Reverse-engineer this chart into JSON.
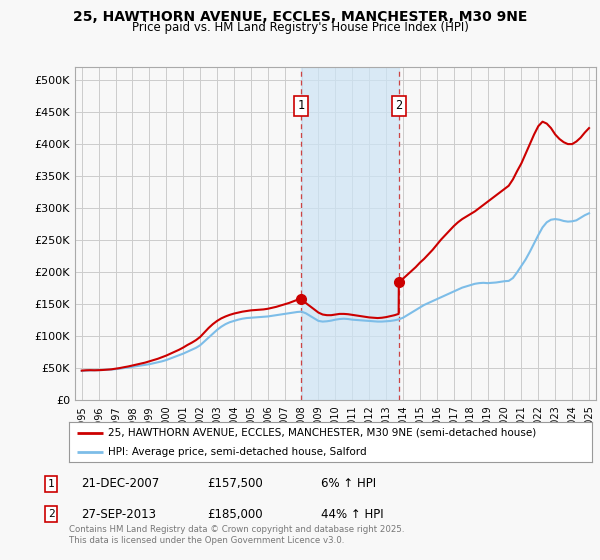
{
  "title_line1": "25, HAWTHORN AVENUE, ECCLES, MANCHESTER, M30 9NE",
  "title_line2": "Price paid vs. HM Land Registry's House Price Index (HPI)",
  "ylabel_ticks": [
    "£0",
    "£50K",
    "£100K",
    "£150K",
    "£200K",
    "£250K",
    "£300K",
    "£350K",
    "£400K",
    "£450K",
    "£500K"
  ],
  "ytick_values": [
    0,
    50000,
    100000,
    150000,
    200000,
    250000,
    300000,
    350000,
    400000,
    450000,
    500000
  ],
  "ylim": [
    0,
    520000
  ],
  "xlim_start": 1994.6,
  "xlim_end": 2025.4,
  "sale1_date": 2007.97,
  "sale1_price": 157500,
  "sale1_label": "1",
  "sale1_date_str": "21-DEC-2007",
  "sale1_price_str": "£157,500",
  "sale1_hpi_str": "6% ↑ HPI",
  "sale2_date": 2013.74,
  "sale2_price": 185000,
  "sale2_label": "2",
  "sale2_date_str": "27-SEP-2013",
  "sale2_price_str": "£185,000",
  "sale2_hpi_str": "44% ↑ HPI",
  "shaded_region_start": 2007.97,
  "shaded_region_end": 2013.74,
  "hpi_color": "#7dbde8",
  "price_color": "#cc0000",
  "background_color": "#f8f8f8",
  "grid_color": "#cccccc",
  "legend_label_price": "25, HAWTHORN AVENUE, ECCLES, MANCHESTER, M30 9NE (semi-detached house)",
  "legend_label_hpi": "HPI: Average price, semi-detached house, Salford",
  "footnote": "Contains HM Land Registry data © Crown copyright and database right 2025.\nThis data is licensed under the Open Government Licence v3.0.",
  "hpi_data": [
    [
      1995.0,
      46000
    ],
    [
      1995.25,
      46500
    ],
    [
      1995.5,
      46800
    ],
    [
      1995.75,
      47000
    ],
    [
      1996.0,
      47200
    ],
    [
      1996.25,
      47500
    ],
    [
      1996.5,
      47800
    ],
    [
      1996.75,
      48200
    ],
    [
      1997.0,
      48800
    ],
    [
      1997.25,
      49500
    ],
    [
      1997.5,
      50500
    ],
    [
      1997.75,
      51500
    ],
    [
      1998.0,
      52500
    ],
    [
      1998.25,
      53500
    ],
    [
      1998.5,
      54500
    ],
    [
      1998.75,
      55500
    ],
    [
      1999.0,
      56500
    ],
    [
      1999.25,
      58000
    ],
    [
      1999.5,
      59500
    ],
    [
      1999.75,
      61000
    ],
    [
      2000.0,
      63000
    ],
    [
      2000.25,
      65500
    ],
    [
      2000.5,
      68000
    ],
    [
      2000.75,
      70500
    ],
    [
      2001.0,
      73000
    ],
    [
      2001.25,
      76000
    ],
    [
      2001.5,
      79000
    ],
    [
      2001.75,
      82000
    ],
    [
      2002.0,
      86000
    ],
    [
      2002.25,
      92000
    ],
    [
      2002.5,
      98000
    ],
    [
      2002.75,
      104000
    ],
    [
      2003.0,
      110000
    ],
    [
      2003.25,
      115000
    ],
    [
      2003.5,
      119000
    ],
    [
      2003.75,
      122000
    ],
    [
      2004.0,
      124000
    ],
    [
      2004.25,
      126000
    ],
    [
      2004.5,
      127500
    ],
    [
      2004.75,
      128500
    ],
    [
      2005.0,
      129000
    ],
    [
      2005.25,
      129500
    ],
    [
      2005.5,
      130000
    ],
    [
      2005.75,
      130500
    ],
    [
      2006.0,
      131000
    ],
    [
      2006.25,
      132000
    ],
    [
      2006.5,
      133000
    ],
    [
      2006.75,
      134000
    ],
    [
      2007.0,
      135000
    ],
    [
      2007.25,
      136000
    ],
    [
      2007.5,
      137000
    ],
    [
      2007.75,
      138000
    ],
    [
      2008.0,
      138500
    ],
    [
      2008.25,
      136000
    ],
    [
      2008.5,
      132000
    ],
    [
      2008.75,
      128000
    ],
    [
      2009.0,
      124000
    ],
    [
      2009.25,
      123000
    ],
    [
      2009.5,
      123500
    ],
    [
      2009.75,
      124500
    ],
    [
      2010.0,
      126000
    ],
    [
      2010.25,
      127000
    ],
    [
      2010.5,
      127500
    ],
    [
      2010.75,
      127000
    ],
    [
      2011.0,
      126000
    ],
    [
      2011.25,
      125500
    ],
    [
      2011.5,
      125000
    ],
    [
      2011.75,
      124500
    ],
    [
      2012.0,
      124000
    ],
    [
      2012.25,
      123500
    ],
    [
      2012.5,
      123000
    ],
    [
      2012.75,
      123000
    ],
    [
      2013.0,
      123500
    ],
    [
      2013.25,
      124000
    ],
    [
      2013.5,
      125000
    ],
    [
      2013.75,
      126500
    ],
    [
      2014.0,
      129000
    ],
    [
      2014.25,
      133000
    ],
    [
      2014.5,
      137000
    ],
    [
      2014.75,
      141000
    ],
    [
      2015.0,
      145000
    ],
    [
      2015.25,
      149000
    ],
    [
      2015.5,
      152000
    ],
    [
      2015.75,
      155000
    ],
    [
      2016.0,
      158000
    ],
    [
      2016.25,
      161000
    ],
    [
      2016.5,
      164000
    ],
    [
      2016.75,
      167000
    ],
    [
      2017.0,
      170000
    ],
    [
      2017.25,
      173000
    ],
    [
      2017.5,
      176000
    ],
    [
      2017.75,
      178000
    ],
    [
      2018.0,
      180000
    ],
    [
      2018.25,
      182000
    ],
    [
      2018.5,
      183000
    ],
    [
      2018.75,
      183500
    ],
    [
      2019.0,
      183000
    ],
    [
      2019.25,
      183500
    ],
    [
      2019.5,
      184000
    ],
    [
      2019.75,
      185000
    ],
    [
      2020.0,
      186000
    ],
    [
      2020.25,
      186500
    ],
    [
      2020.5,
      191000
    ],
    [
      2020.75,
      200000
    ],
    [
      2021.0,
      210000
    ],
    [
      2021.25,
      220000
    ],
    [
      2021.5,
      232000
    ],
    [
      2021.75,
      245000
    ],
    [
      2022.0,
      258000
    ],
    [
      2022.25,
      270000
    ],
    [
      2022.5,
      278000
    ],
    [
      2022.75,
      282000
    ],
    [
      2023.0,
      283000
    ],
    [
      2023.25,
      282000
    ],
    [
      2023.5,
      280000
    ],
    [
      2023.75,
      279000
    ],
    [
      2024.0,
      279500
    ],
    [
      2024.25,
      281000
    ],
    [
      2024.5,
      285000
    ],
    [
      2024.75,
      289000
    ],
    [
      2025.0,
      292000
    ]
  ],
  "price_data": [
    [
      1995.0,
      46500
    ],
    [
      1995.25,
      47000
    ],
    [
      1995.5,
      47200
    ],
    [
      1995.75,
      47000
    ],
    [
      1996.0,
      47200
    ],
    [
      1996.25,
      47500
    ],
    [
      1996.5,
      48000
    ],
    [
      1996.75,
      48500
    ],
    [
      1997.0,
      49500
    ],
    [
      1997.25,
      50500
    ],
    [
      1997.5,
      51800
    ],
    [
      1997.75,
      53000
    ],
    [
      1998.0,
      54500
    ],
    [
      1998.25,
      56000
    ],
    [
      1998.5,
      57500
    ],
    [
      1998.75,
      59000
    ],
    [
      1999.0,
      61000
    ],
    [
      1999.25,
      63000
    ],
    [
      1999.5,
      65000
    ],
    [
      1999.75,
      67500
    ],
    [
      2000.0,
      70000
    ],
    [
      2000.25,
      73000
    ],
    [
      2000.5,
      76000
    ],
    [
      2000.75,
      79000
    ],
    [
      2001.0,
      82500
    ],
    [
      2001.25,
      86500
    ],
    [
      2001.5,
      90000
    ],
    [
      2001.75,
      94000
    ],
    [
      2002.0,
      99000
    ],
    [
      2002.25,
      106000
    ],
    [
      2002.5,
      113000
    ],
    [
      2002.75,
      119000
    ],
    [
      2003.0,
      124000
    ],
    [
      2003.25,
      128000
    ],
    [
      2003.5,
      131000
    ],
    [
      2003.75,
      133500
    ],
    [
      2004.0,
      135500
    ],
    [
      2004.25,
      137000
    ],
    [
      2004.5,
      138500
    ],
    [
      2004.75,
      139500
    ],
    [
      2005.0,
      140500
    ],
    [
      2005.25,
      141000
    ],
    [
      2005.5,
      141500
    ],
    [
      2005.75,
      142000
    ],
    [
      2006.0,
      143000
    ],
    [
      2006.25,
      144500
    ],
    [
      2006.5,
      146000
    ],
    [
      2006.75,
      148000
    ],
    [
      2007.0,
      150000
    ],
    [
      2007.25,
      152000
    ],
    [
      2007.5,
      154500
    ],
    [
      2007.75,
      157000
    ],
    [
      2007.97,
      157500
    ],
    [
      2008.0,
      156000
    ],
    [
      2008.25,
      152000
    ],
    [
      2008.5,
      147000
    ],
    [
      2008.75,
      142000
    ],
    [
      2009.0,
      137000
    ],
    [
      2009.25,
      134000
    ],
    [
      2009.5,
      133000
    ],
    [
      2009.75,
      133000
    ],
    [
      2010.0,
      134000
    ],
    [
      2010.25,
      135000
    ],
    [
      2010.5,
      135000
    ],
    [
      2010.75,
      134500
    ],
    [
      2011.0,
      133500
    ],
    [
      2011.25,
      132500
    ],
    [
      2011.5,
      131500
    ],
    [
      2011.75,
      130500
    ],
    [
      2012.0,
      129500
    ],
    [
      2012.25,
      129000
    ],
    [
      2012.5,
      128500
    ],
    [
      2012.75,
      129000
    ],
    [
      2013.0,
      130000
    ],
    [
      2013.25,
      131500
    ],
    [
      2013.5,
      133000
    ],
    [
      2013.74,
      135000
    ],
    [
      2013.75,
      185000
    ],
    [
      2014.0,
      190000
    ],
    [
      2014.25,
      196000
    ],
    [
      2014.5,
      202000
    ],
    [
      2014.75,
      208000
    ],
    [
      2015.0,
      215000
    ],
    [
      2015.25,
      221000
    ],
    [
      2015.5,
      228000
    ],
    [
      2015.75,
      235000
    ],
    [
      2016.0,
      243000
    ],
    [
      2016.25,
      251000
    ],
    [
      2016.5,
      258000
    ],
    [
      2016.75,
      265000
    ],
    [
      2017.0,
      272000
    ],
    [
      2017.25,
      278000
    ],
    [
      2017.5,
      283000
    ],
    [
      2017.75,
      287000
    ],
    [
      2018.0,
      291000
    ],
    [
      2018.25,
      295000
    ],
    [
      2018.5,
      300000
    ],
    [
      2018.75,
      305000
    ],
    [
      2019.0,
      310000
    ],
    [
      2019.25,
      315000
    ],
    [
      2019.5,
      320000
    ],
    [
      2019.75,
      325000
    ],
    [
      2020.0,
      330000
    ],
    [
      2020.25,
      335000
    ],
    [
      2020.5,
      345000
    ],
    [
      2020.75,
      358000
    ],
    [
      2021.0,
      370000
    ],
    [
      2021.25,
      385000
    ],
    [
      2021.5,
      400000
    ],
    [
      2021.75,
      415000
    ],
    [
      2022.0,
      428000
    ],
    [
      2022.25,
      435000
    ],
    [
      2022.5,
      432000
    ],
    [
      2022.75,
      425000
    ],
    [
      2023.0,
      415000
    ],
    [
      2023.25,
      408000
    ],
    [
      2023.5,
      403000
    ],
    [
      2023.75,
      400000
    ],
    [
      2024.0,
      400000
    ],
    [
      2024.25,
      404000
    ],
    [
      2024.5,
      410000
    ],
    [
      2024.75,
      418000
    ],
    [
      2025.0,
      425000
    ]
  ]
}
